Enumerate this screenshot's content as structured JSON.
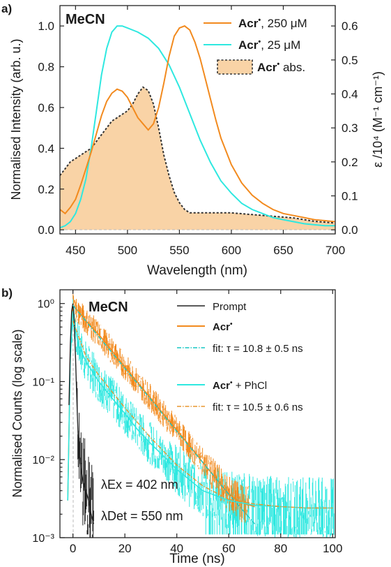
{
  "panel_a": {
    "panel_label": "a)",
    "solvent": "MeCN",
    "xlabel": "Wavelength (nm)",
    "ylabel_left": "Normalised Intensity (arb. u.)",
    "ylabel_right": "ε /10⁴ (M⁻¹ cm⁻¹)",
    "x_ticks": [
      "450",
      "500",
      "550",
      "600",
      "650",
      "700"
    ],
    "y_left_ticks": [
      "0.0",
      "0.2",
      "0.4",
      "0.6",
      "0.8",
      "1.0"
    ],
    "y_right_ticks": [
      "0.0",
      "0.1",
      "0.2",
      "0.3",
      "0.4",
      "0.5",
      "0.6"
    ],
    "legend": [
      {
        "bold": "Acr",
        "dot": "•",
        "rest": ", 250 μM"
      },
      {
        "bold": "Acr",
        "dot": "•",
        "rest": ", 25 μM"
      },
      {
        "bold": "Acr",
        "dot": "•",
        "rest": " abs."
      }
    ]
  },
  "panel_b": {
    "panel_label": "b)",
    "solvent": "MeCN",
    "xlabel": "Time (ns)",
    "ylabel": "Normalised Counts (log scale)",
    "x_ticks": [
      "0",
      "20",
      "40",
      "60",
      "80",
      "100"
    ],
    "y_ticks": [
      "10⁻³",
      "10⁻²",
      "10⁻¹",
      "10⁰"
    ],
    "legend": [
      {
        "bold": "",
        "dot": "",
        "rest": "Prompt"
      },
      {
        "bold": "Acr",
        "dot": "•",
        "rest": ""
      },
      {
        "bold": "",
        "dot": "",
        "rest": "fit: τ = 10.8 ± 0.5 ns"
      },
      {
        "bold": "Acr",
        "dot": "•",
        "rest": " + PhCl"
      },
      {
        "bold": "",
        "dot": "",
        "rest": "fit: τ = 10.5 ± 0.6 ns"
      }
    ],
    "ex_label": "λEx = 402 nm",
    "det_label": "λDet = 550 nm"
  },
  "colors": {
    "orange": "#f28a1e",
    "cyan": "#2ee8e0",
    "absorption_fill": "#f9d3a6",
    "black": "#222222",
    "fit_cyan": "#17c7c4",
    "fit_orange": "#e8962e"
  },
  "chart_data": [
    {
      "type": "line",
      "title": "MeCN",
      "xlabel": "Wavelength (nm)",
      "ylabel": "Normalised Intensity (arb. u.)",
      "y2label": "ε /10⁴ (M⁻¹ cm⁻¹)",
      "xlim": [
        435,
        700
      ],
      "ylim": [
        -0.02,
        1.1
      ],
      "y2lim": [
        -0.012,
        0.66
      ],
      "legend_position": "top-right",
      "grid": false,
      "series": [
        {
          "name": "Acr•, 250 μM",
          "axis": "left",
          "color": "#f28a1e",
          "x": [
            435,
            440,
            445,
            450,
            455,
            460,
            465,
            470,
            475,
            480,
            485,
            490,
            495,
            500,
            505,
            510,
            515,
            520,
            525,
            530,
            535,
            540,
            545,
            550,
            555,
            560,
            565,
            570,
            575,
            580,
            585,
            590,
            600,
            610,
            620,
            630,
            640,
            650,
            660,
            670,
            680,
            690,
            700
          ],
          "y": [
            0.1,
            0.08,
            0.11,
            0.15,
            0.22,
            0.3,
            0.38,
            0.47,
            0.56,
            0.63,
            0.67,
            0.69,
            0.68,
            0.65,
            0.6,
            0.55,
            0.52,
            0.49,
            0.52,
            0.6,
            0.72,
            0.85,
            0.95,
            0.99,
            1.0,
            0.98,
            0.92,
            0.84,
            0.74,
            0.64,
            0.54,
            0.45,
            0.32,
            0.23,
            0.17,
            0.13,
            0.1,
            0.08,
            0.07,
            0.06,
            0.05,
            0.045,
            0.04
          ]
        },
        {
          "name": "Acr•, 25 μM",
          "axis": "left",
          "color": "#2ee8e0",
          "x": [
            435,
            440,
            445,
            450,
            455,
            460,
            465,
            470,
            475,
            480,
            485,
            490,
            495,
            500,
            505,
            510,
            520,
            530,
            540,
            550,
            560,
            570,
            580,
            590,
            600,
            610,
            620,
            630,
            640,
            650,
            660,
            670,
            680,
            690,
            700
          ],
          "y": [
            0.01,
            0.02,
            0.04,
            0.08,
            0.15,
            0.25,
            0.4,
            0.58,
            0.76,
            0.89,
            0.97,
            1.0,
            1.0,
            0.99,
            0.98,
            0.97,
            0.94,
            0.89,
            0.81,
            0.7,
            0.57,
            0.44,
            0.33,
            0.24,
            0.18,
            0.13,
            0.1,
            0.08,
            0.06,
            0.05,
            0.04,
            0.03,
            0.025,
            0.02,
            0.02
          ]
        },
        {
          "name": "Acr• abs.",
          "axis": "right",
          "color": "#333333",
          "style": "dashed-filled",
          "x": [
            435,
            440,
            445,
            450,
            455,
            460,
            465,
            470,
            475,
            480,
            485,
            490,
            495,
            500,
            505,
            510,
            515,
            520,
            525,
            530,
            535,
            540,
            545,
            550,
            555,
            560,
            570,
            580,
            590,
            600,
            620,
            640,
            660,
            680,
            700
          ],
          "y": [
            0.16,
            0.18,
            0.2,
            0.21,
            0.22,
            0.23,
            0.24,
            0.26,
            0.28,
            0.3,
            0.32,
            0.33,
            0.34,
            0.35,
            0.37,
            0.4,
            0.42,
            0.41,
            0.37,
            0.3,
            0.22,
            0.16,
            0.11,
            0.08,
            0.06,
            0.05,
            0.05,
            0.05,
            0.05,
            0.05,
            0.045,
            0.04,
            0.035,
            0.025,
            0.02
          ]
        }
      ]
    },
    {
      "type": "line",
      "title": "MeCN",
      "xlabel": "Time (ns)",
      "ylabel": "Normalised Counts (log scale)",
      "xlim": [
        -5,
        101
      ],
      "ylim": [
        0.001,
        1.5
      ],
      "yscale": "log",
      "legend_position": "top-right",
      "grid": false,
      "series": [
        {
          "name": "Prompt",
          "color": "#222222",
          "x": [
            -1.5,
            -1,
            -0.5,
            0,
            0.5,
            1,
            1.5,
            2,
            3,
            4,
            5,
            6,
            7,
            8
          ],
          "y": [
            0.05,
            0.3,
            0.8,
            1.0,
            0.6,
            0.2,
            0.06,
            0.02,
            0.008,
            0.005,
            0.004,
            0.003,
            0.002,
            0.0015
          ]
        },
        {
          "name": "Acr•",
          "color": "#f28a1e",
          "x": [
            -2,
            -1,
            0,
            2,
            5,
            10,
            15,
            20,
            25,
            30,
            35,
            40,
            45,
            50,
            55,
            60,
            65,
            70
          ],
          "y": [
            0.003,
            0.2,
            0.95,
            0.8,
            0.6,
            0.4,
            0.25,
            0.155,
            0.097,
            0.061,
            0.038,
            0.024,
            0.015,
            0.0092,
            0.0058,
            0.0036,
            0.0028,
            0.0025
          ]
        },
        {
          "name": "fit: τ = 10.8 ± 0.5 ns",
          "color": "#17c7c4",
          "style": "dash-dot",
          "x": [
            0,
            10,
            20,
            30,
            40,
            50,
            60,
            70
          ],
          "y": [
            0.95,
            0.375,
            0.148,
            0.059,
            0.023,
            0.0092,
            0.0036,
            0.0015
          ]
        },
        {
          "name": "Acr• + PhCl",
          "color": "#2ee8e0",
          "x": [
            -2,
            -1,
            0,
            2,
            5,
            10,
            15,
            20,
            25,
            30,
            35,
            40,
            50,
            60,
            70,
            80,
            90,
            100
          ],
          "y": [
            0.003,
            0.2,
            0.8,
            0.3,
            0.18,
            0.1,
            0.062,
            0.039,
            0.024,
            0.016,
            0.011,
            0.0075,
            0.004,
            0.003,
            0.0026,
            0.0025,
            0.0024,
            0.0024
          ]
        },
        {
          "name": "fit: τ = 10.5 ± 0.6 ns",
          "color": "#e8962e",
          "style": "dash-dot",
          "x": [
            0,
            5,
            10,
            20,
            30,
            40,
            50,
            60,
            70,
            80,
            90,
            100
          ],
          "y": [
            0.6,
            0.21,
            0.12,
            0.046,
            0.019,
            0.0085,
            0.0046,
            0.0031,
            0.0027,
            0.0025,
            0.0024,
            0.0024
          ]
        }
      ]
    }
  ]
}
